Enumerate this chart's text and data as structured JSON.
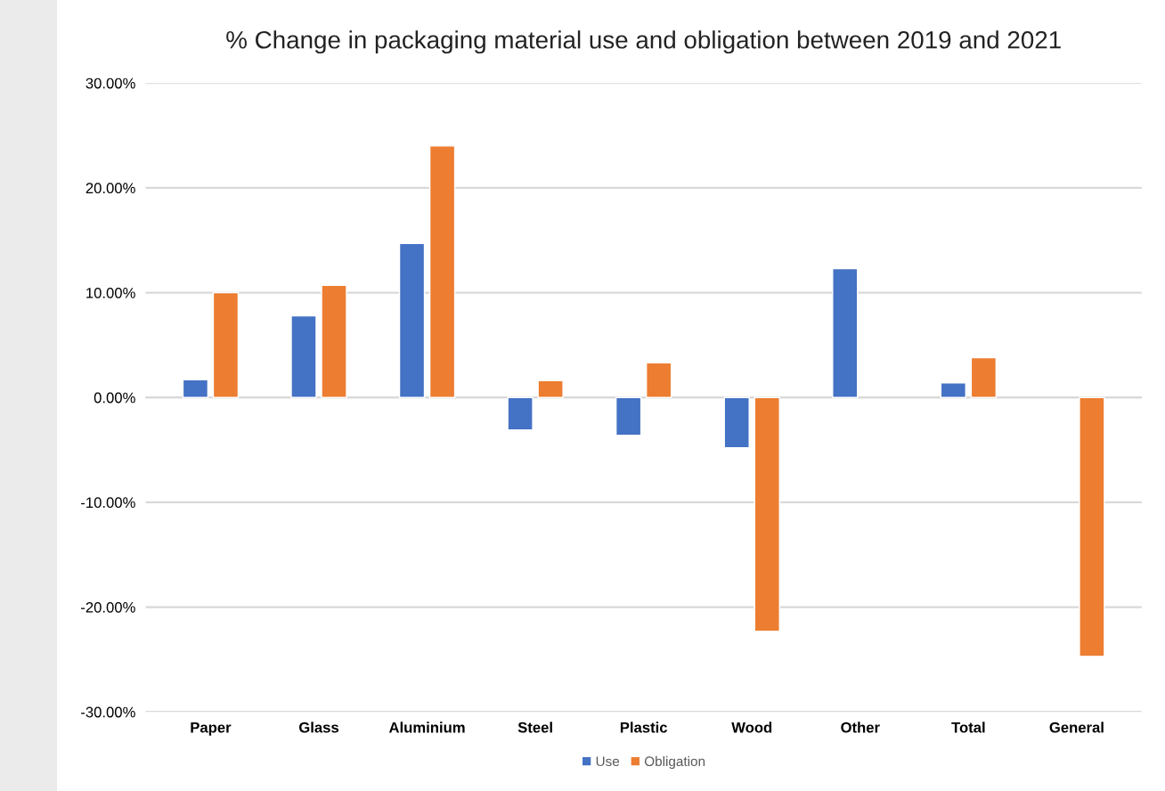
{
  "chart_data": {
    "type": "bar",
    "title": "% Change in packaging material use and obligation between 2019 and 2021",
    "categories": [
      "Paper",
      "Glass",
      "Aluminium",
      "Steel",
      "Plastic",
      "Wood",
      "Other",
      "Total",
      "General"
    ],
    "series": [
      {
        "name": "Use",
        "color": "#4472c4",
        "values": [
          1.7,
          7.8,
          14.7,
          -3.1,
          -3.6,
          -4.8,
          12.3,
          1.4,
          null
        ]
      },
      {
        "name": "Obligation",
        "color": "#ed7d31",
        "values": [
          10.0,
          10.7,
          24.0,
          1.6,
          3.3,
          -22.3,
          null,
          3.8,
          -24.7
        ]
      }
    ],
    "ylim": [
      -30,
      30
    ],
    "yticks": [
      {
        "value": -30,
        "label": "-30.00%"
      },
      {
        "value": -20,
        "label": "-20.00%"
      },
      {
        "value": -10,
        "label": "-10.00%"
      },
      {
        "value": 0,
        "label": "0.00%"
      },
      {
        "value": 10,
        "label": "10.00%"
      },
      {
        "value": 20,
        "label": "20.00%"
      },
      {
        "value": 30,
        "label": "30.00%"
      }
    ],
    "grid": "y",
    "legend": "bottom"
  }
}
